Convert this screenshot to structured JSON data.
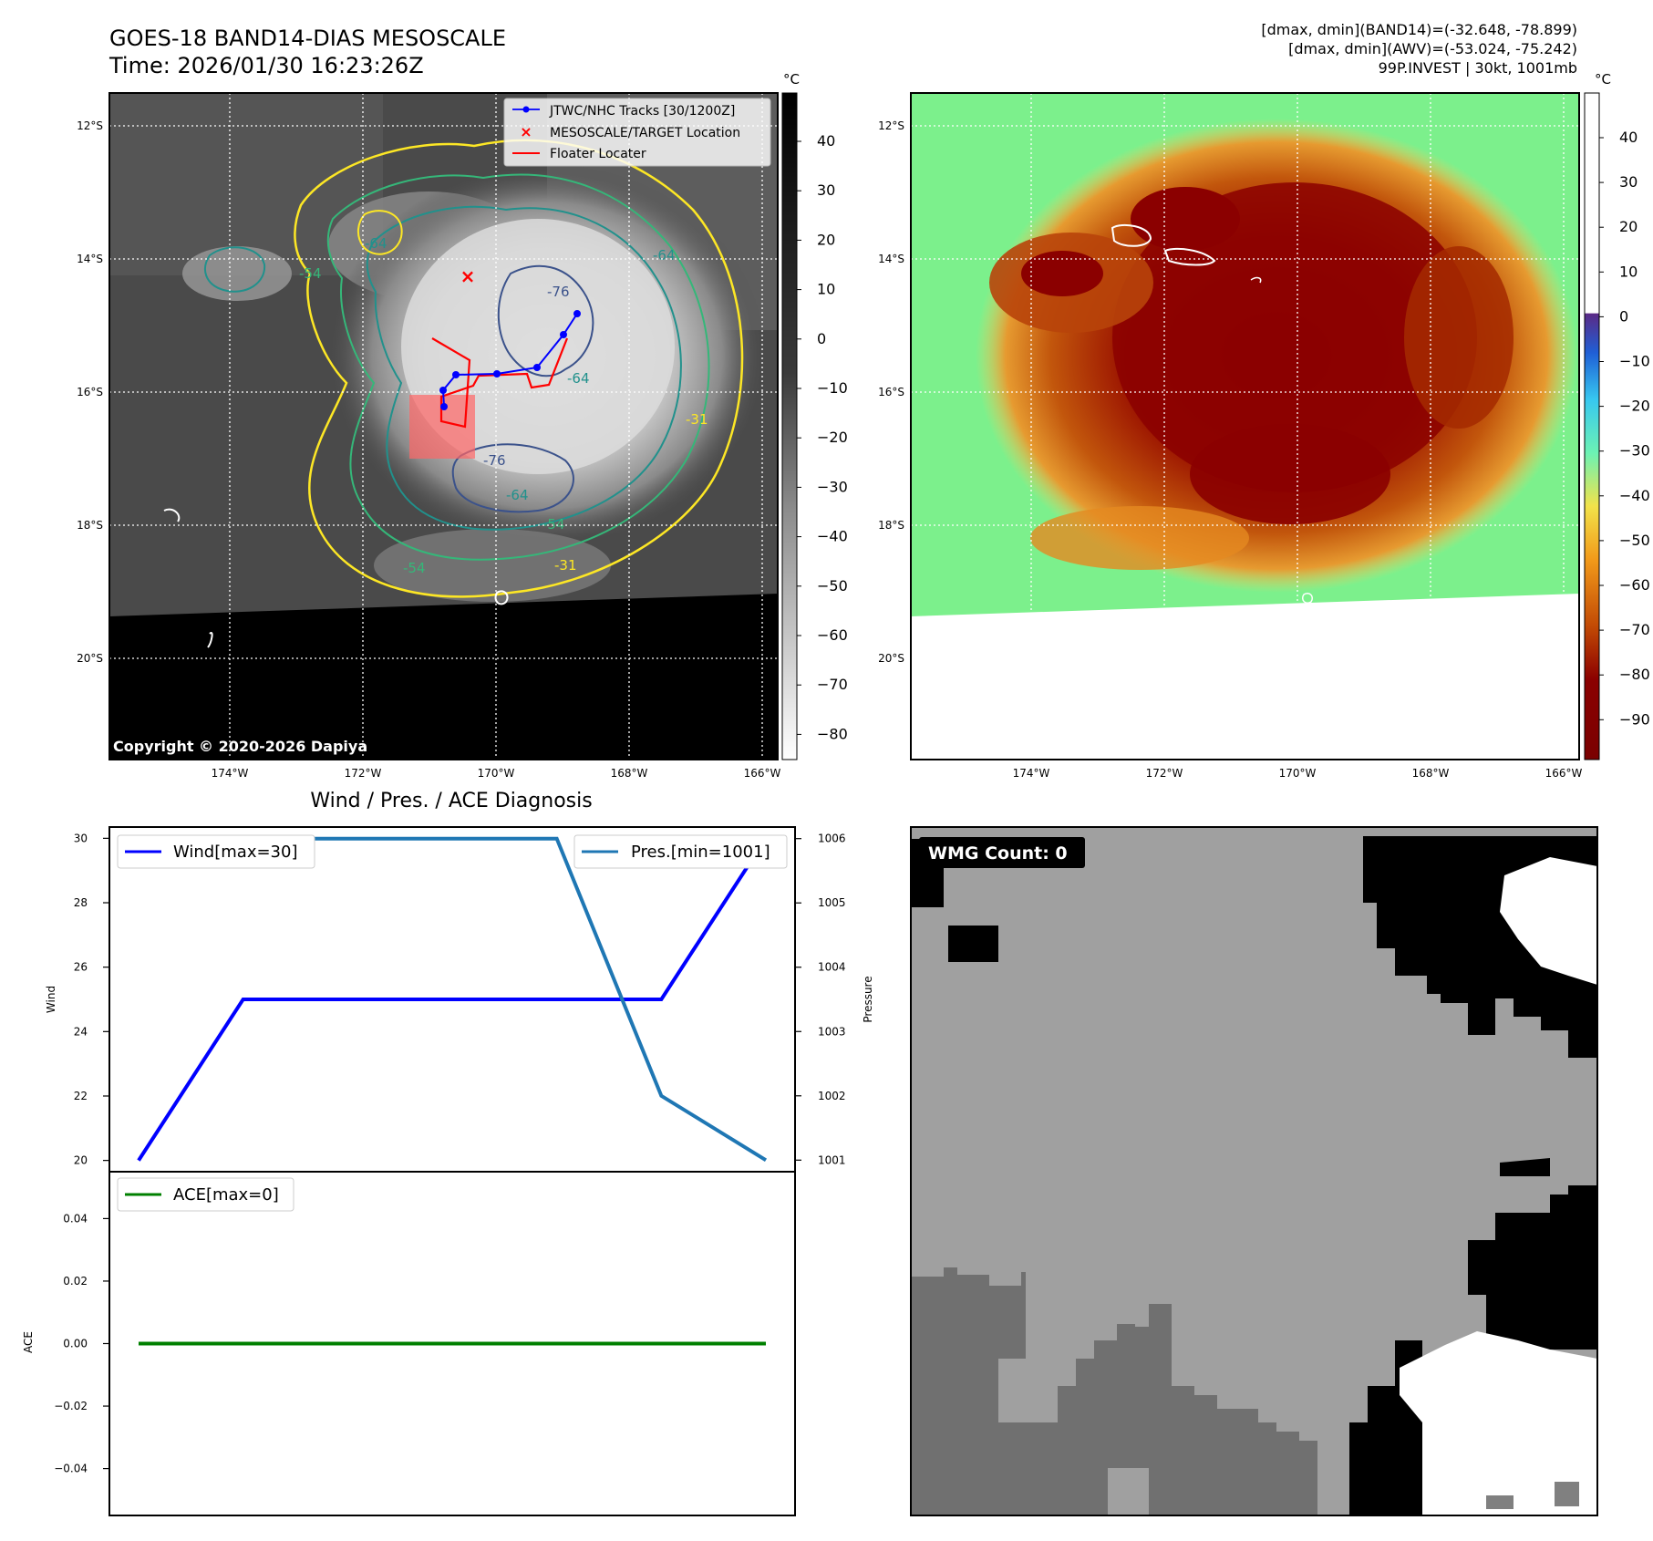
{
  "header": {
    "title_line1": "GOES-18 BAND14-DIAS MESOSCALE",
    "title_line2": "Time: 2026/01/30 16:23:26Z",
    "info_line1": "[dmax, dmin](BAND14)=(-32.648, -78.899)",
    "info_line2": "[dmax, dmin](AWV)=(-53.024, -75.242)",
    "info_line3": "99P.INVEST | 30kt, 1001mb"
  },
  "map": {
    "lon_ticks": [
      "174°W",
      "172°W",
      "170°W",
      "168°W",
      "166°W"
    ],
    "lat_ticks": [
      "12°S",
      "14°S",
      "16°S",
      "18°S",
      "20°S"
    ],
    "colorbar_unit": "°C",
    "ir_colorbar_ticks": [
      "40",
      "30",
      "20",
      "10",
      "0",
      "−10",
      "−20",
      "−30",
      "−40",
      "−50",
      "−60",
      "−70",
      "−80"
    ],
    "awv_colorbar_ticks": [
      "40",
      "30",
      "20",
      "10",
      "0",
      "−10",
      "−20",
      "−30",
      "−40",
      "−50",
      "−60",
      "−70",
      "−80",
      "−90"
    ],
    "legend": {
      "tracks": "JTWC/NHC Tracks [30/1200Z]",
      "target": "MESOSCALE/TARGET Location",
      "floater": "Floater Locater"
    },
    "contour_labels": [
      "-64",
      "-54",
      "-76",
      "-76",
      "-64",
      "-64",
      "-54",
      "-31",
      "-64",
      "-54",
      "-31"
    ],
    "copyright": "Copyright © 2020-2026 Dapiya",
    "colors": {
      "track": "#0000ff",
      "target": "#ff0000",
      "floater": "#ff0000",
      "contour_31": "#fde725",
      "contour_54": "#35b779",
      "contour_64": "#21918c",
      "contour_76": "#3b528b"
    }
  },
  "diagnosis": {
    "title": "Wind / Pres. / ACE Diagnosis",
    "wind_axis_label": "Wind",
    "pressure_axis_label": "Pressure",
    "ace_axis_label": "ACE",
    "wind_ticks": [
      "30",
      "28",
      "26",
      "24",
      "22",
      "20"
    ],
    "pressure_ticks": [
      "1006",
      "1005",
      "1004",
      "1003",
      "1002",
      "1001"
    ],
    "ace_ticks": [
      "0.04",
      "0.02",
      "0.00",
      "−0.02",
      "−0.04"
    ],
    "wind_legend": "Wind[max=30]",
    "pressure_legend": "Pres.[min=1001]",
    "ace_legend": "ACE[max=0]"
  },
  "wmg": {
    "label": "WMG Count: 0"
  },
  "chart_data": [
    {
      "type": "line",
      "title": "Wind / Pres. / ACE Diagnosis",
      "x": [
        0,
        1,
        2,
        3,
        4,
        5,
        6
      ],
      "series": [
        {
          "name": "Wind[max=30]",
          "axis": "left",
          "color": "#0000ff",
          "values": [
            20,
            25,
            25,
            25,
            25,
            25,
            30
          ]
        },
        {
          "name": "Pres.[min=1001]",
          "axis": "right",
          "color": "#1f77b4",
          "values": [
            1006,
            1006,
            1006,
            1006,
            1006,
            1002,
            1001
          ]
        }
      ],
      "ylabel": "Wind",
      "y2label": "Pressure",
      "ylim": [
        19.65,
        30.35
      ],
      "y2lim": [
        1000.82,
        1006.18
      ],
      "legend": [
        "top-left",
        "top-right"
      ]
    },
    {
      "type": "line",
      "x": [
        0,
        1,
        2,
        3,
        4,
        5,
        6
      ],
      "series": [
        {
          "name": "ACE[max=0]",
          "color": "#008000",
          "values": [
            0,
            0,
            0,
            0,
            0,
            0,
            0
          ]
        }
      ],
      "ylabel": "ACE",
      "ylim": [
        -0.055,
        0.055
      ],
      "legend": "top-left"
    }
  ]
}
